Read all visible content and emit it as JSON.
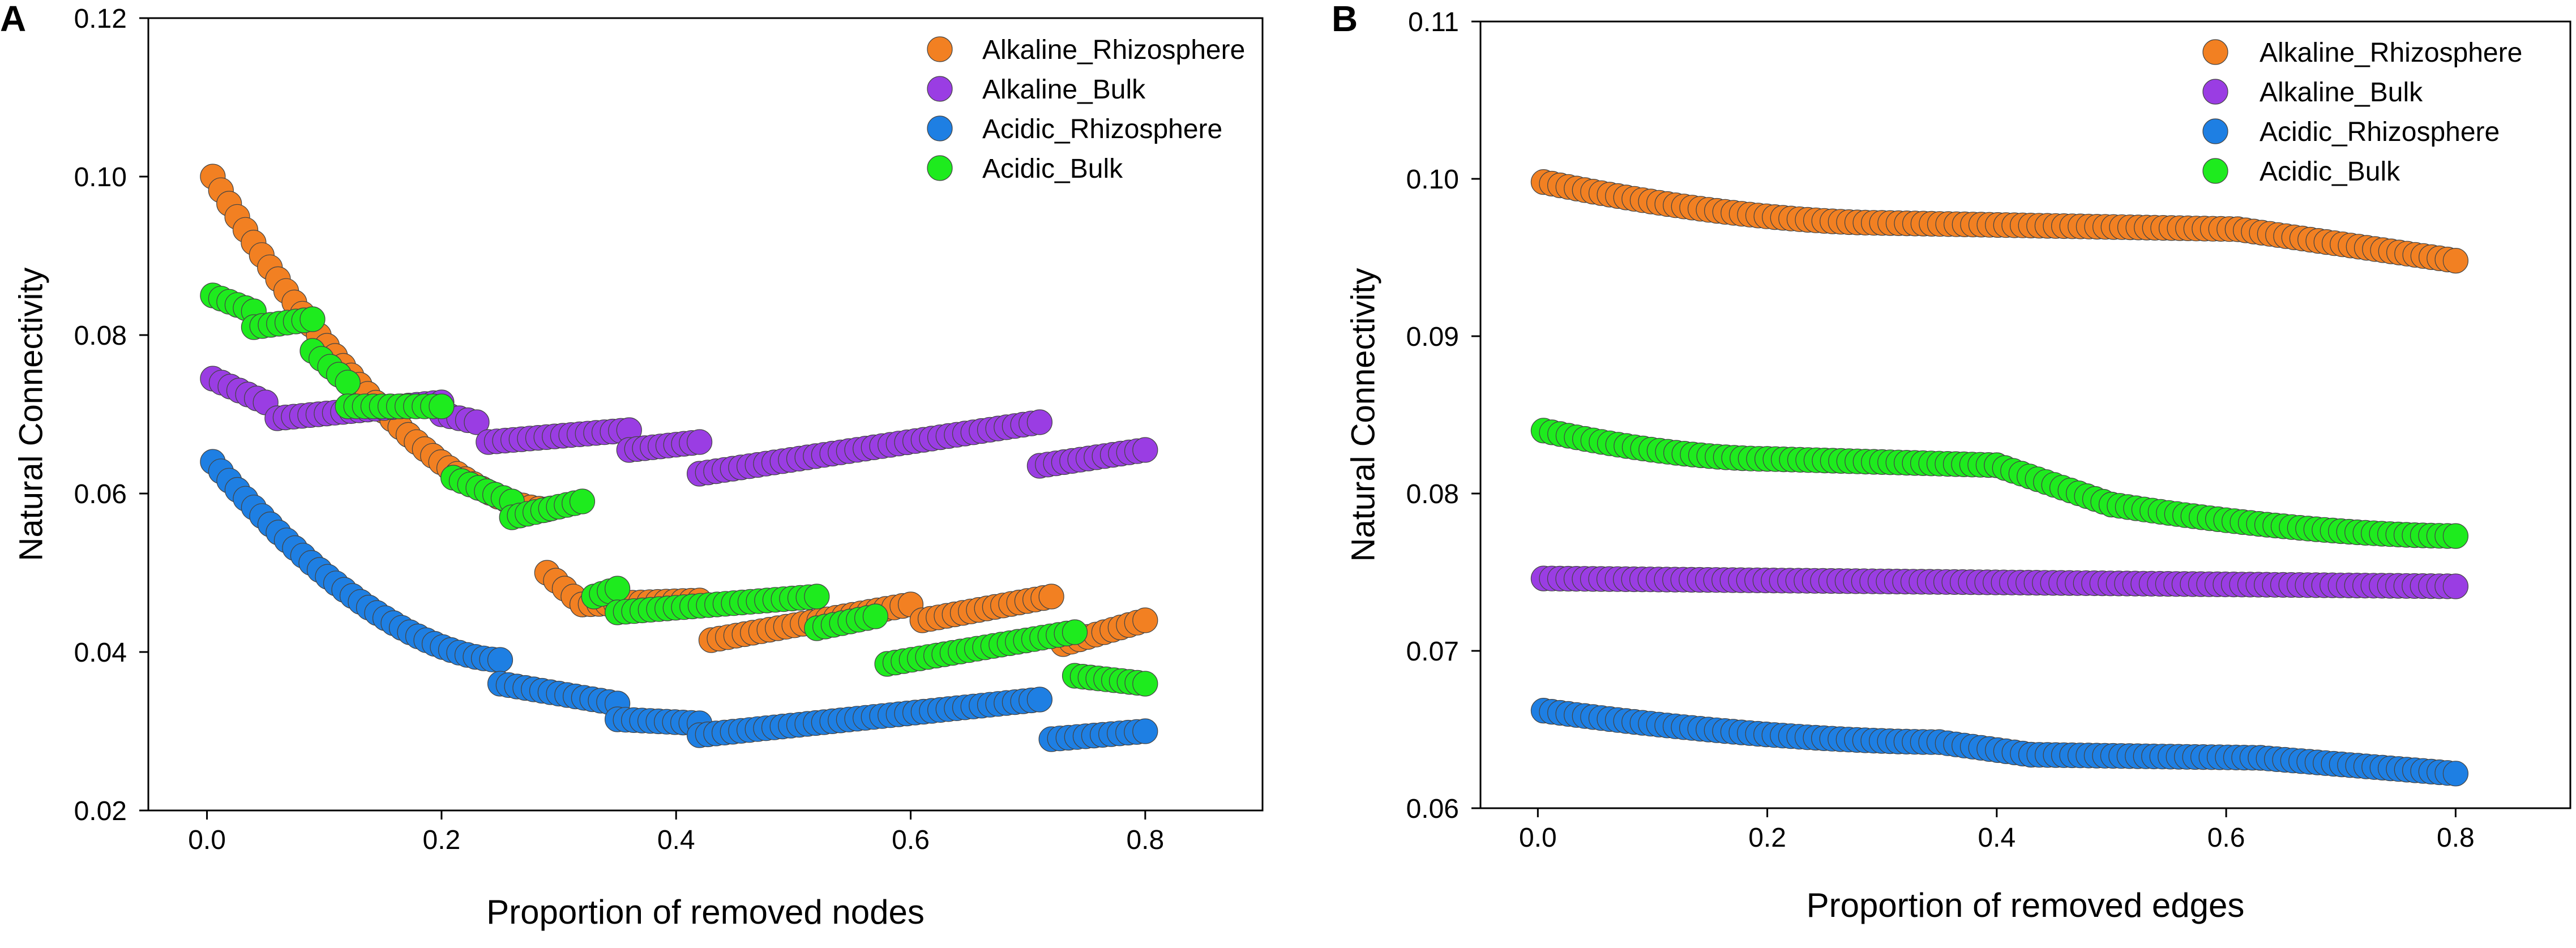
{
  "figure": {
    "panels": [
      {
        "letter": "A"
      },
      {
        "letter": "B"
      }
    ]
  },
  "chart_data": [
    {
      "type": "scatter",
      "panel": "A",
      "title": "",
      "xlabel": "Proportion of removed nodes",
      "ylabel": "Natural Connectivity",
      "xlim": [
        -0.05,
        0.9
      ],
      "ylim": [
        0.02,
        0.12
      ],
      "xticks": [
        0.0,
        0.2,
        0.4,
        0.6,
        0.8
      ],
      "yticks": [
        0.02,
        0.04,
        0.06,
        0.08,
        0.1,
        0.12
      ],
      "xtick_labels": [
        "0.0",
        "0.2",
        "0.4",
        "0.6",
        "0.8"
      ],
      "ytick_labels": [
        "0.02",
        "0.04",
        "0.06",
        "0.08",
        "0.10",
        "0.12"
      ],
      "legend_position": "top-right",
      "series": [
        {
          "name": "Alkaline_Rhizosphere",
          "color": "#F28022",
          "segments": [
            {
              "x": [
                0.005,
                0.29
              ],
              "y": [
                0.1,
                0.058
              ],
              "shape": "convex"
            },
            {
              "x": [
                0.29,
                0.32
              ],
              "y": [
                0.05,
                0.046
              ]
            },
            {
              "x": [
                0.32,
                0.42
              ],
              "y": [
                0.046,
                0.0465
              ]
            },
            {
              "x": [
                0.43,
                0.6
              ],
              "y": [
                0.0415,
                0.046
              ]
            },
            {
              "x": [
                0.61,
                0.72
              ],
              "y": [
                0.044,
                0.047
              ]
            },
            {
              "x": [
                0.73,
                0.8
              ],
              "y": [
                0.041,
                0.044
              ]
            }
          ]
        },
        {
          "name": "Alkaline_Bulk",
          "color": "#9A3DE3",
          "segments": [
            {
              "x": [
                0.005,
                0.05
              ],
              "y": [
                0.0745,
                0.0715
              ]
            },
            {
              "x": [
                0.06,
                0.2
              ],
              "y": [
                0.0695,
                0.0715
              ]
            },
            {
              "x": [
                0.2,
                0.23
              ],
              "y": [
                0.07,
                0.069
              ]
            },
            {
              "x": [
                0.24,
                0.36
              ],
              "y": [
                0.0665,
                0.068
              ]
            },
            {
              "x": [
                0.36,
                0.42
              ],
              "y": [
                0.0655,
                0.0665
              ]
            },
            {
              "x": [
                0.42,
                0.71
              ],
              "y": [
                0.0625,
                0.069
              ]
            },
            {
              "x": [
                0.71,
                0.8
              ],
              "y": [
                0.0635,
                0.0655
              ]
            }
          ]
        },
        {
          "name": "Acidic_Rhizosphere",
          "color": "#1E7FE3",
          "segments": [
            {
              "x": [
                0.005,
                0.25
              ],
              "y": [
                0.064,
                0.039
              ],
              "shape": "convex"
            },
            {
              "x": [
                0.25,
                0.35
              ],
              "y": [
                0.036,
                0.0335
              ]
            },
            {
              "x": [
                0.35,
                0.42
              ],
              "y": [
                0.0315,
                0.031
              ]
            },
            {
              "x": [
                0.42,
                0.71
              ],
              "y": [
                0.0295,
                0.034
              ]
            },
            {
              "x": [
                0.72,
                0.8
              ],
              "y": [
                0.029,
                0.03
              ]
            }
          ]
        },
        {
          "name": "Acidic_Bulk",
          "color": "#1EEB1E",
          "segments": [
            {
              "x": [
                0.005,
                0.04
              ],
              "y": [
                0.085,
                0.083
              ]
            },
            {
              "x": [
                0.04,
                0.09
              ],
              "y": [
                0.081,
                0.082
              ]
            },
            {
              "x": [
                0.09,
                0.12
              ],
              "y": [
                0.078,
                0.074
              ]
            },
            {
              "x": [
                0.12,
                0.2
              ],
              "y": [
                0.071,
                0.071
              ]
            },
            {
              "x": [
                0.21,
                0.26
              ],
              "y": [
                0.062,
                0.059
              ]
            },
            {
              "x": [
                0.26,
                0.32
              ],
              "y": [
                0.057,
                0.059
              ]
            },
            {
              "x": [
                0.33,
                0.35
              ],
              "y": [
                0.047,
                0.048
              ]
            },
            {
              "x": [
                0.35,
                0.52
              ],
              "y": [
                0.045,
                0.047
              ]
            },
            {
              "x": [
                0.52,
                0.57
              ],
              "y": [
                0.043,
                0.0445
              ]
            },
            {
              "x": [
                0.58,
                0.74
              ],
              "y": [
                0.0385,
                0.0425
              ]
            },
            {
              "x": [
                0.74,
                0.8
              ],
              "y": [
                0.037,
                0.036
              ]
            }
          ]
        }
      ]
    },
    {
      "type": "scatter",
      "panel": "B",
      "title": "",
      "xlabel": "Proportion of removed edges",
      "ylabel": "Natural Connectivity",
      "xlim": [
        -0.05,
        0.9
      ],
      "ylim": [
        0.06,
        0.11
      ],
      "xticks": [
        0.0,
        0.2,
        0.4,
        0.6,
        0.8
      ],
      "yticks": [
        0.06,
        0.07,
        0.08,
        0.09,
        0.1,
        0.11
      ],
      "xtick_labels": [
        "0.0",
        "0.2",
        "0.4",
        "0.6",
        "0.8"
      ],
      "ytick_labels": [
        "0.06",
        "0.07",
        "0.08",
        "0.09",
        "0.10",
        "0.11"
      ],
      "legend_position": "top-right",
      "series": [
        {
          "name": "Alkaline_Rhizosphere",
          "color": "#F28022",
          "segments": [
            {
              "x": [
                0.005,
                0.3
              ],
              "y": [
                0.0998,
                0.0972
              ],
              "shape": "convex"
            },
            {
              "x": [
                0.3,
                0.61
              ],
              "y": [
                0.0972,
                0.0968
              ]
            },
            {
              "x": [
                0.61,
                0.8
              ],
              "y": [
                0.0968,
                0.0948
              ]
            }
          ]
        },
        {
          "name": "Alkaline_Bulk",
          "color": "#9A3DE3",
          "segments": [
            {
              "x": [
                0.005,
                0.8
              ],
              "y": [
                0.0746,
                0.0741
              ]
            }
          ]
        },
        {
          "name": "Acidic_Rhizosphere",
          "color": "#1E7FE3",
          "segments": [
            {
              "x": [
                0.005,
                0.35
              ],
              "y": [
                0.0662,
                0.0642
              ],
              "shape": "convex"
            },
            {
              "x": [
                0.35,
                0.43
              ],
              "y": [
                0.0642,
                0.0634
              ]
            },
            {
              "x": [
                0.43,
                0.63
              ],
              "y": [
                0.0634,
                0.0632
              ]
            },
            {
              "x": [
                0.63,
                0.8
              ],
              "y": [
                0.0632,
                0.0622
              ]
            }
          ]
        },
        {
          "name": "Acidic_Bulk",
          "color": "#1EEB1E",
          "segments": [
            {
              "x": [
                0.005,
                0.2
              ],
              "y": [
                0.084,
                0.0822
              ],
              "shape": "convex"
            },
            {
              "x": [
                0.2,
                0.4
              ],
              "y": [
                0.0822,
                0.0818
              ]
            },
            {
              "x": [
                0.4,
                0.5
              ],
              "y": [
                0.0818,
                0.0793
              ]
            },
            {
              "x": [
                0.5,
                0.8
              ],
              "y": [
                0.0793,
                0.0773
              ],
              "shape": "convex"
            }
          ]
        }
      ]
    }
  ]
}
